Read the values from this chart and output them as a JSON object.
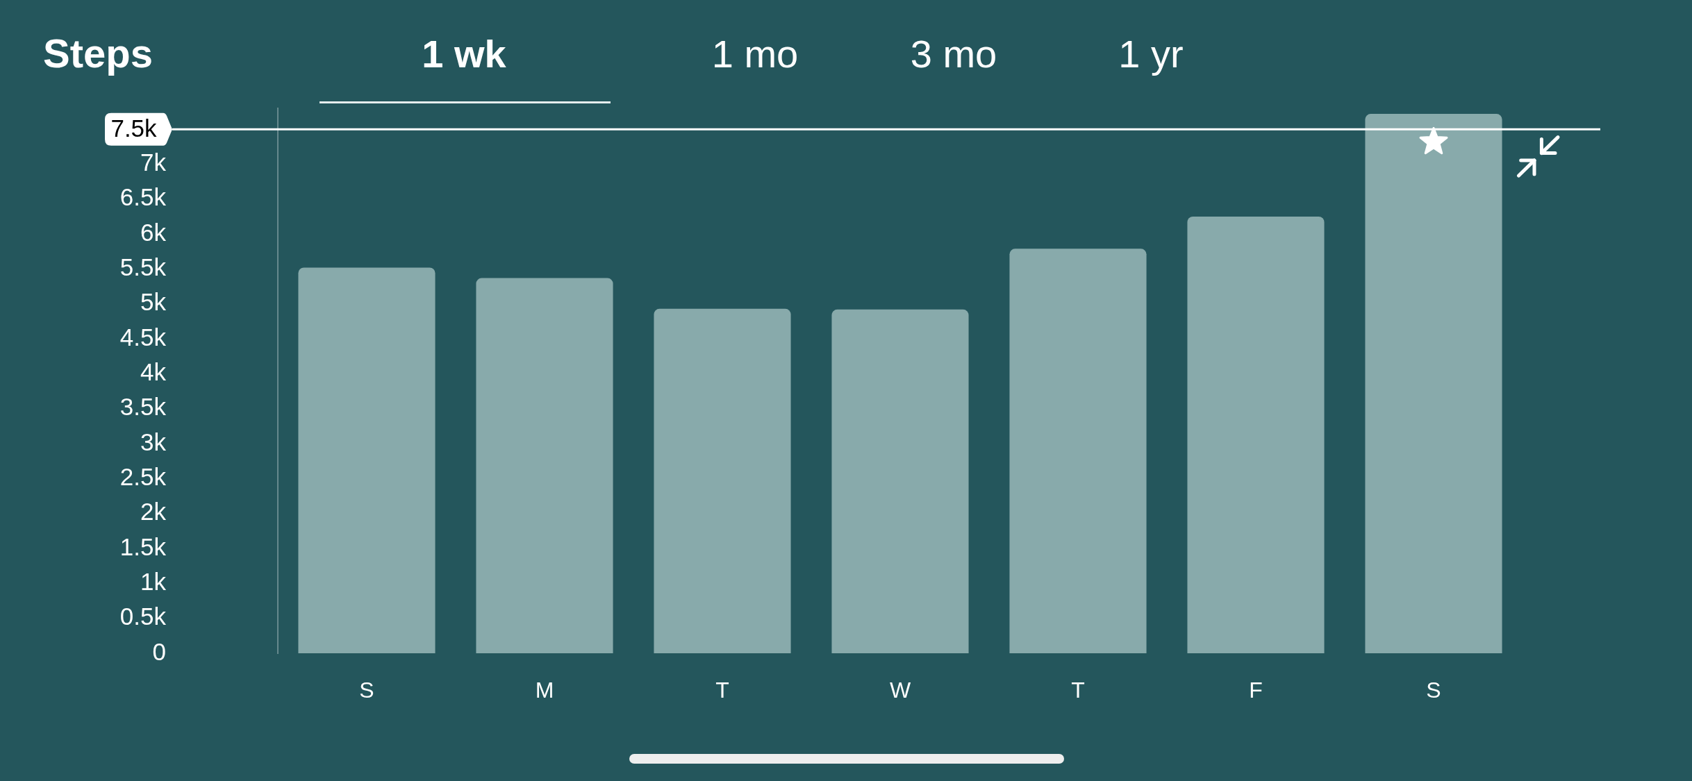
{
  "chart_data": {
    "type": "bar",
    "title": "Steps",
    "annotations": [
      "1 wk",
      "1 mo",
      "3 mo",
      "1 yr"
    ],
    "categories": [
      "S",
      "M",
      "T",
      "W",
      "T",
      "F",
      "S"
    ],
    "values": [
      5520,
      5370,
      4930,
      4920,
      5790,
      6250,
      7720
    ],
    "color": "#88aaab",
    "ylim": [
      0,
      7800
    ],
    "yticks": [
      0,
      {
        "value": 500,
        "label": "0.5k"
      },
      {
        "value": 1000,
        "label": "1k"
      },
      {
        "value": 1500,
        "label": "1.5k"
      },
      {
        "value": 2000,
        "label": "2k"
      },
      {
        "value": 2500,
        "label": "2.5k"
      },
      {
        "value": 3000,
        "label": "3k"
      },
      {
        "value": 3500,
        "label": "3.5k"
      },
      {
        "value": 4000,
        "label": "4k"
      },
      {
        "value": 4500,
        "label": "4.5k"
      },
      {
        "value": 5000,
        "label": "5k"
      },
      {
        "value": 5500,
        "label": "5.5k"
      },
      {
        "value": 6000,
        "label": "6k"
      },
      {
        "value": 6500,
        "label": "6.5k"
      },
      {
        "value": 7000,
        "label": "7k"
      }
    ],
    "ref_lines": [
      {
        "axis": "y",
        "value": 7500,
        "label": "7.5k",
        "color": "#ffffff"
      }
    ]
  }
}
